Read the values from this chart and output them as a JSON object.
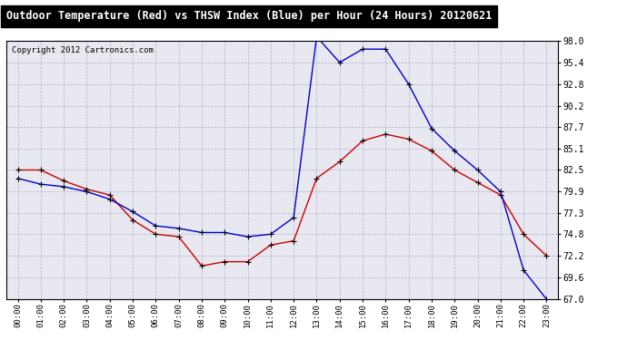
{
  "title": "Outdoor Temperature (Red) vs THSW Index (Blue) per Hour (24 Hours) 20120621",
  "copyright": "Copyright 2012 Cartronics.com",
  "hours": [
    "00:00",
    "01:00",
    "02:00",
    "03:00",
    "04:00",
    "05:00",
    "06:00",
    "07:00",
    "08:00",
    "09:00",
    "10:00",
    "11:00",
    "12:00",
    "13:00",
    "14:00",
    "15:00",
    "16:00",
    "17:00",
    "18:00",
    "19:00",
    "20:00",
    "21:00",
    "22:00",
    "23:00"
  ],
  "red_temp": [
    82.5,
    82.5,
    81.2,
    80.2,
    79.5,
    76.5,
    74.8,
    74.5,
    71.0,
    71.5,
    71.5,
    73.5,
    74.0,
    81.5,
    83.5,
    86.0,
    86.8,
    86.2,
    84.8,
    82.5,
    81.0,
    79.5,
    74.8,
    72.2
  ],
  "blue_thsw": [
    81.5,
    80.8,
    80.5,
    79.9,
    79.0,
    77.5,
    75.8,
    75.5,
    75.0,
    75.0,
    74.5,
    74.8,
    76.8,
    98.5,
    95.4,
    97.0,
    97.0,
    92.8,
    87.5,
    84.8,
    82.5,
    79.9,
    70.5,
    67.0
  ],
  "ylim_min": 67.0,
  "ylim_max": 98.0,
  "yticks": [
    67.0,
    69.6,
    72.2,
    74.8,
    77.3,
    79.9,
    82.5,
    85.1,
    87.7,
    90.2,
    92.8,
    95.4,
    98.0
  ],
  "red_color": "#cc0000",
  "blue_color": "#0000cc",
  "plot_bg": "#e8e8f0",
  "fig_bg": "#ffffff",
  "grid_color": "#aaaacc",
  "title_bg": "#000000",
  "title_fg": "#ffffff",
  "copyright_color": "#000000"
}
